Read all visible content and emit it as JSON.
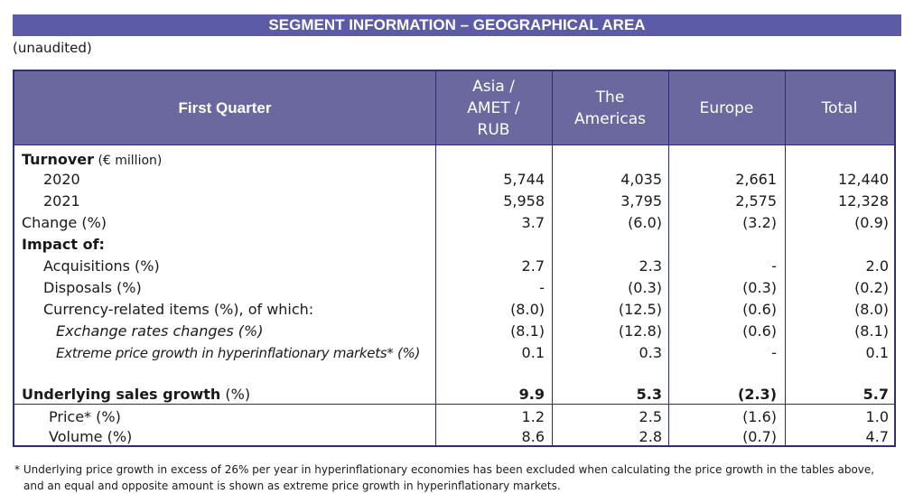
{
  "title": "SEGMENT INFORMATION – GEOGRAPHICAL AREA",
  "subtitle": "(unaudited)",
  "header": {
    "period": "First Quarter",
    "columns": [
      [
        "Asia /",
        "AMET /",
        "RUB"
      ],
      [
        "The",
        "Americas"
      ],
      [
        "Europe"
      ],
      [
        "Total"
      ]
    ]
  },
  "rows": [
    {
      "label": "Turnover",
      "suffix": " (€ million)",
      "values": [
        "",
        "",
        "",
        ""
      ]
    },
    {
      "label": "2020",
      "values": [
        "5,744",
        "4,035",
        "2,661",
        "12,440"
      ]
    },
    {
      "label": "2021",
      "values": [
        "5,958",
        "3,795",
        "2,575",
        "12,328"
      ]
    },
    {
      "label": "Change (%)",
      "values": [
        "3.7",
        "(6.0)",
        "(3.2)",
        "(0.9)"
      ]
    },
    {
      "label": "Impact of:",
      "values": [
        "",
        "",
        "",
        ""
      ]
    },
    {
      "label": "Acquisitions (%)",
      "values": [
        "2.7",
        "2.3",
        "-",
        "2.0"
      ]
    },
    {
      "label": "Disposals (%)",
      "values": [
        "-",
        "(0.3)",
        "(0.3)",
        "(0.2)"
      ]
    },
    {
      "label": "Currency-related items (%), of which:",
      "values": [
        "(8.0)",
        "(12.5)",
        "(0.6)",
        "(8.0)"
      ]
    },
    {
      "label": "Exchange rates changes (%)",
      "values": [
        "(8.1)",
        "(12.8)",
        "(0.6)",
        "(8.1)"
      ]
    },
    {
      "label": "Extreme price growth in hyperinflationary markets* (%)",
      "values": [
        "0.1",
        "0.3",
        "-",
        "0.1"
      ]
    },
    {
      "label": "Underlying sales growth",
      "suffix": " (%)",
      "values": [
        "9.9",
        "5.3",
        "(2.3)",
        "5.7"
      ]
    },
    {
      "label": "Price* (%)",
      "values": [
        "1.2",
        "2.5",
        "(1.6)",
        "1.0"
      ]
    },
    {
      "label": "Volume (%)",
      "values": [
        "8.6",
        "2.8",
        "(0.7)",
        "4.7"
      ]
    }
  ],
  "footnote": [
    "* Underlying price growth in excess of 26% per year in hyperinflationary economies has been excluded when calculating the price growth in the tables above,",
    "and an equal and opposite amount is shown as extreme price growth in hyperinflationary markets."
  ],
  "colors": {
    "title_bg": "#5b5ba8",
    "header_bg": "#6b68a0",
    "border": "#2e2e78"
  }
}
